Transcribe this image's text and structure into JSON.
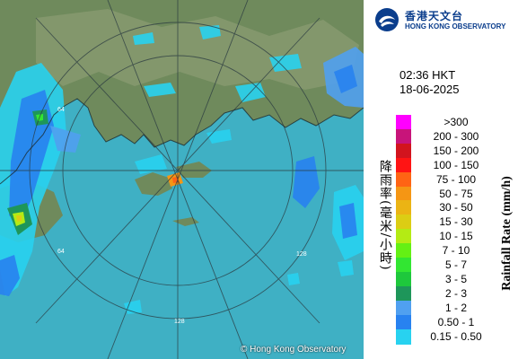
{
  "header": {
    "org_name_cn": "香港天文台",
    "org_name_en": "HONG KONG OBSERVATORY"
  },
  "timestamp": {
    "time": "02:36 HKT",
    "date": "18-06-2025"
  },
  "map": {
    "range_ring_labels": [
      "64",
      "64",
      "128",
      "128"
    ],
    "copyright": "© Hong Kong Observatory"
  },
  "legend": {
    "title_cn": "降雨率(毫米/小時)",
    "title_en": "Rainfall Rate (mm/h)",
    "items": [
      {
        "label": ">300",
        "color": "#ff00ff"
      },
      {
        "label": "200 - 300",
        "color": "#c8147a"
      },
      {
        "label": "150 - 200",
        "color": "#d2141e"
      },
      {
        "label": "100 - 150",
        "color": "#ff1414"
      },
      {
        "label": "75 - 100",
        "color": "#ff6414"
      },
      {
        "label": "50 - 75",
        "color": "#f59614"
      },
      {
        "label": "30 - 50",
        "color": "#ebb414"
      },
      {
        "label": "15 - 30",
        "color": "#dccd14"
      },
      {
        "label": "10 - 15",
        "color": "#b4eb14"
      },
      {
        "label": "7 - 10",
        "color": "#64f014"
      },
      {
        "label": "5 - 7",
        "color": "#32e632"
      },
      {
        "label": "3 - 5",
        "color": "#1ec83c"
      },
      {
        "label": "2 - 3",
        "color": "#1e965a"
      },
      {
        "label": "1 - 2",
        "color": "#50a0f0"
      },
      {
        "label": "0.50 - 1",
        "color": "#2882f0"
      },
      {
        "label": "0.15 - 0.50",
        "color": "#28d2f0"
      }
    ]
  }
}
